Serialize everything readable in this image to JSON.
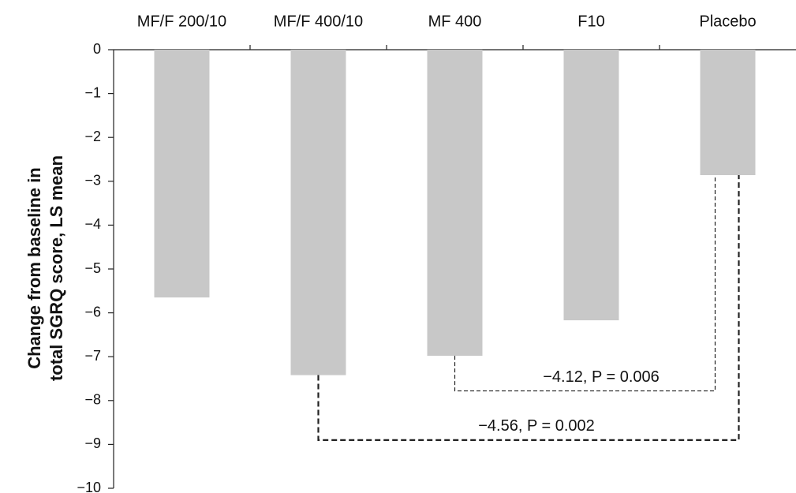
{
  "chart_data": {
    "type": "bar",
    "ylabel": [
      "Change from baseline in",
      "total SGRQ score, LS mean"
    ],
    "categories": [
      "MF/F 200/10",
      "MF/F 400/10",
      "MF 400",
      "F10",
      "Placebo"
    ],
    "values": [
      -5.65,
      -7.42,
      -6.98,
      -6.17,
      -2.86
    ],
    "color": "#c8c8c8",
    "ylim": [
      -10,
      0
    ],
    "yticks": [
      0,
      {
        "value": -1,
        "label": "−1"
      },
      {
        "value": -2,
        "label": "−2"
      },
      {
        "value": -3,
        "label": "−3"
      },
      {
        "value": -4,
        "label": "−4"
      },
      {
        "value": -5,
        "label": "−5"
      },
      {
        "value": -6,
        "label": "−6"
      },
      {
        "value": -7,
        "label": "−7"
      },
      {
        "value": -8,
        "label": "−8"
      },
      {
        "value": -9,
        "label": "−9"
      },
      {
        "value": -10,
        "label": "−10"
      }
    ],
    "grid": false,
    "annotations": [
      "−4.12,  P = 0.006",
      "−4.56,  P = 0.002"
    ]
  }
}
